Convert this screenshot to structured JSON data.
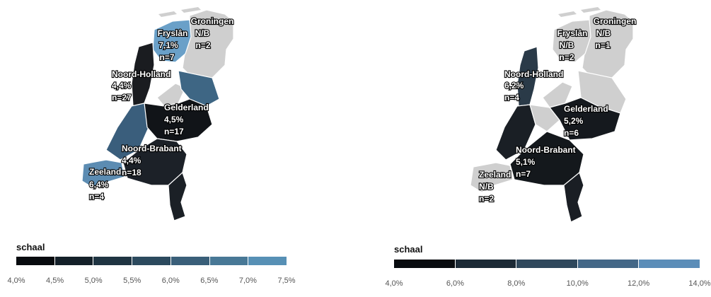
{
  "maps": [
    {
      "legend": {
        "title": "schaal",
        "ticks": [
          "4,0%",
          "4,5%",
          "5,0%",
          "5,5%",
          "6,0%",
          "6,5%",
          "7,0%",
          "7,5%"
        ],
        "range": [
          4.0,
          7.5
        ],
        "colors": [
          "#080b0f",
          "#142029",
          "#1f3442",
          "#2c4a5e",
          "#3a5f79",
          "#487896",
          "#5790b5"
        ]
      },
      "provinces": [
        {
          "name": "Groningen",
          "value": "N/B",
          "n": "n=2",
          "color": "#cfcfcf"
        },
        {
          "name": "Fryslân",
          "value": "7,1%",
          "n": "n=7",
          "color": "#6aa0c8"
        },
        {
          "name": "Noord-Holland",
          "value": "4,4%",
          "n": "n=27",
          "color": "#1a1c20"
        },
        {
          "name": "Gelderland",
          "value": "4,5%",
          "n": "n=17",
          "color": "#111418"
        },
        {
          "name": "Noord-Brabant",
          "value": "4,4%",
          "n": "n=18",
          "color": "#1c2128"
        },
        {
          "name": "Zeeland",
          "value": "6,4%",
          "n": "n=4",
          "color": "#5c8cb2"
        }
      ]
    },
    {
      "legend": {
        "title": "schaal",
        "ticks": [
          "4,0%",
          "6,0%",
          "8,0%",
          "10,0%",
          "12,0%",
          "14,0%"
        ],
        "range": [
          4.0,
          14.0
        ],
        "colors": [
          "#080b0f",
          "#1c2a36",
          "#2f485c",
          "#436787",
          "#5b8db8"
        ]
      },
      "provinces": [
        {
          "name": "Groningen",
          "value": "N/B",
          "n": "n=1",
          "color": "#cfcfcf"
        },
        {
          "name": "Fryslân",
          "value": "N/B",
          "n": "n=2",
          "color": "#cfcfcf"
        },
        {
          "name": "Noord-Holland",
          "value": "6,2%",
          "n": "n=4",
          "color": "#2a3a48"
        },
        {
          "name": "Gelderland",
          "value": "5,2%",
          "n": "n=6",
          "color": "#15191e"
        },
        {
          "name": "Noord-Brabant",
          "value": "5,1%",
          "n": "n=7",
          "color": "#14181c"
        },
        {
          "name": "Zeeland",
          "value": "N/B",
          "n": "n=2",
          "color": "#cfcfcf"
        }
      ]
    }
  ]
}
